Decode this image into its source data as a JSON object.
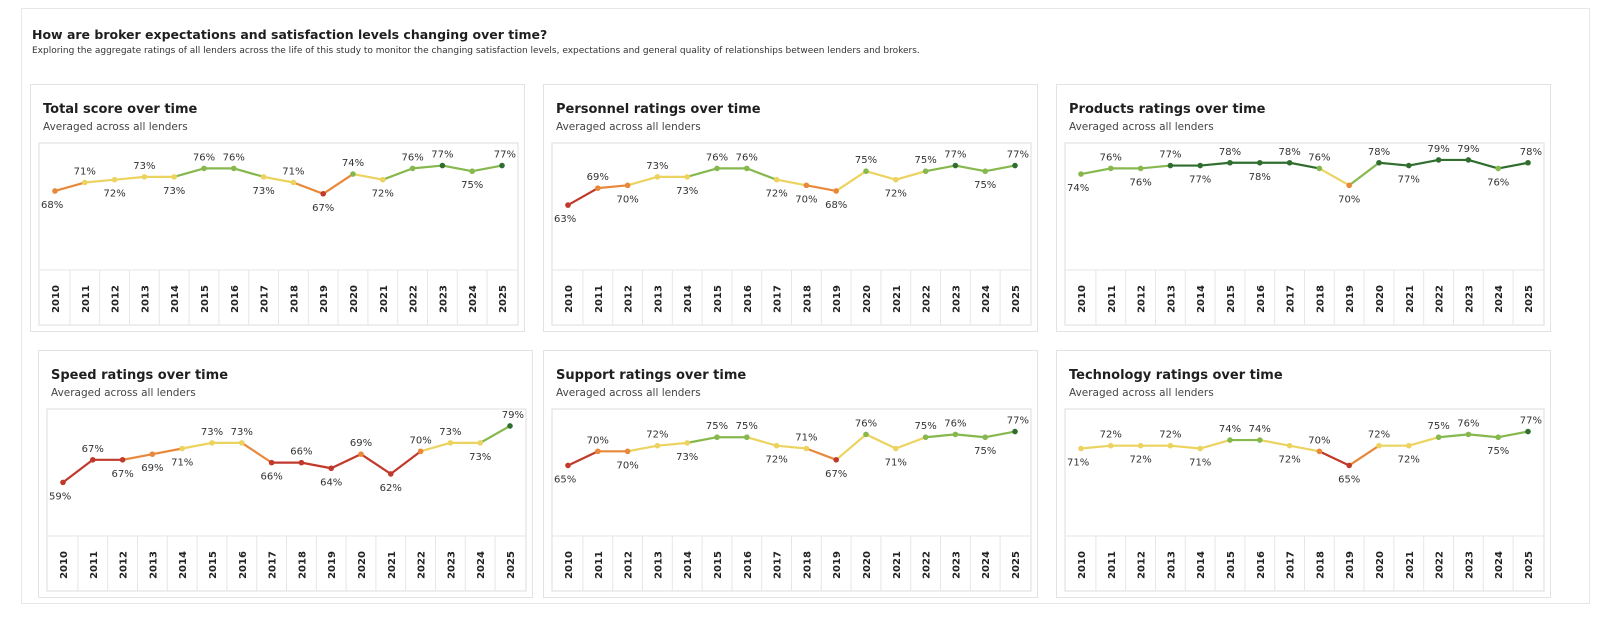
{
  "header": {
    "title": "How are broker expectations and satisfaction levels changing over time?",
    "subtitle": "Exploring the aggregate ratings of all lenders across the life of this study to monitor the changing satisfaction levels, expectations and general quality of relationships between lenders and brokers."
  },
  "colors": {
    "low": "#c0392b",
    "mid_low": "#e8883a",
    "mid": "#ecd360",
    "mid_high": "#86b84e",
    "high": "#2f6e2f"
  },
  "chart_data": [
    {
      "type": "line",
      "title": "Total score over time",
      "subtitle": "Averaged across all lenders",
      "categories": [
        "2010",
        "2011",
        "2012",
        "2013",
        "2014",
        "2015",
        "2016",
        "2017",
        "2018",
        "2019",
        "2020",
        "2021",
        "2022",
        "2023",
        "2024",
        "2025"
      ],
      "values": [
        68,
        71,
        72,
        73,
        73,
        76,
        76,
        73,
        71,
        67,
        74,
        72,
        76,
        77,
        75,
        77
      ],
      "labels": [
        "68%",
        "71%",
        "72%",
        "73%",
        "73%",
        "76%",
        "76%",
        "73%",
        "71%",
        "67%",
        "74%",
        "72%",
        "76%",
        "77%",
        "75%",
        "77%"
      ],
      "label_pos": [
        "below",
        "above",
        "below",
        "above",
        "below",
        "above",
        "above",
        "below",
        "above",
        "below",
        "above",
        "below",
        "above",
        "above",
        "below",
        "above"
      ],
      "ylim": [
        40,
        85
      ]
    },
    {
      "type": "line",
      "title": "Personnel ratings over time",
      "subtitle": "Averaged across all lenders",
      "categories": [
        "2010",
        "2011",
        "2012",
        "2013",
        "2014",
        "2015",
        "2016",
        "2017",
        "2018",
        "2019",
        "2020",
        "2021",
        "2022",
        "2023",
        "2024",
        "2025"
      ],
      "values": [
        63,
        69,
        70,
        73,
        73,
        76,
        76,
        72,
        70,
        68,
        75,
        72,
        75,
        77,
        75,
        77
      ],
      "labels": [
        "63%",
        "69%",
        "70%",
        "73%",
        "73%",
        "76%",
        "76%",
        "72%",
        "70%",
        "68%",
        "75%",
        "72%",
        "75%",
        "77%",
        "75%",
        "77%"
      ],
      "label_pos": [
        "below",
        "above",
        "below",
        "above",
        "below",
        "above",
        "above",
        "below",
        "below",
        "below",
        "above",
        "below",
        "above",
        "above",
        "below",
        "above"
      ],
      "ylim": [
        40,
        85
      ]
    },
    {
      "type": "line",
      "title": "Products ratings over time",
      "subtitle": "Averaged across all lenders",
      "categories": [
        "2010",
        "2011",
        "2012",
        "2013",
        "2014",
        "2015",
        "2016",
        "2017",
        "2018",
        "2019",
        "2020",
        "2021",
        "2022",
        "2023",
        "2024",
        "2025"
      ],
      "values": [
        74,
        76,
        76,
        77,
        77,
        78,
        78,
        78,
        76,
        70,
        78,
        77,
        79,
        79,
        76,
        78
      ],
      "labels": [
        "74%",
        "76%",
        "76%",
        "77%",
        "77%",
        "78%",
        "78%",
        "78%",
        "76%",
        "70%",
        "78%",
        "77%",
        "79%",
        "79%",
        "76%",
        "78%"
      ],
      "label_pos": [
        "below",
        "above",
        "below",
        "above",
        "below",
        "above",
        "below",
        "above",
        "above",
        "below",
        "above",
        "below",
        "above",
        "above",
        "below",
        "above"
      ],
      "ylim": [
        40,
        85
      ]
    },
    {
      "type": "line",
      "title": "Speed ratings over time",
      "subtitle": "Averaged across all lenders",
      "categories": [
        "2010",
        "2011",
        "2012",
        "2013",
        "2014",
        "2015",
        "2016",
        "2017",
        "2018",
        "2019",
        "2020",
        "2021",
        "2022",
        "2023",
        "2024",
        "2025"
      ],
      "values": [
        59,
        67,
        67,
        69,
        71,
        73,
        73,
        66,
        66,
        64,
        69,
        62,
        70,
        73,
        73,
        79
      ],
      "labels": [
        "59%",
        "67%",
        "67%",
        "69%",
        "71%",
        "73%",
        "73%",
        "66%",
        "66%",
        "64%",
        "69%",
        "62%",
        "70%",
        "73%",
        "73%",
        "79%"
      ],
      "label_pos": [
        "below",
        "above",
        "below",
        "below",
        "below",
        "above",
        "above",
        "below",
        "above",
        "below",
        "above",
        "below",
        "above",
        "above",
        "below",
        "above"
      ],
      "ylim": [
        40,
        85
      ]
    },
    {
      "type": "line",
      "title": "Support ratings over time",
      "subtitle": "Averaged across all lenders",
      "categories": [
        "2010",
        "2011",
        "2012",
        "2013",
        "2014",
        "2015",
        "2016",
        "2017",
        "2018",
        "2019",
        "2020",
        "2021",
        "2022",
        "2023",
        "2024",
        "2025"
      ],
      "values": [
        65,
        70,
        70,
        72,
        73,
        75,
        75,
        72,
        71,
        67,
        76,
        71,
        75,
        76,
        75,
        77
      ],
      "labels": [
        "65%",
        "70%",
        "70%",
        "72%",
        "73%",
        "75%",
        "75%",
        "72%",
        "71%",
        "67%",
        "76%",
        "71%",
        "75%",
        "76%",
        "75%",
        "77%"
      ],
      "label_pos": [
        "below",
        "above",
        "below",
        "above",
        "below",
        "above",
        "above",
        "below",
        "above",
        "below",
        "above",
        "below",
        "above",
        "above",
        "below",
        "above"
      ],
      "ylim": [
        40,
        85
      ]
    },
    {
      "type": "line",
      "title": "Technology ratings over time",
      "subtitle": "Averaged across all lenders",
      "categories": [
        "2010",
        "2011",
        "2012",
        "2013",
        "2014",
        "2015",
        "2016",
        "2017",
        "2018",
        "2019",
        "2020",
        "2021",
        "2022",
        "2023",
        "2024",
        "2025"
      ],
      "values": [
        71,
        72,
        72,
        72,
        71,
        74,
        74,
        72,
        70,
        65,
        72,
        72,
        75,
        76,
        75,
        77
      ],
      "labels": [
        "71%",
        "72%",
        "72%",
        "72%",
        "71%",
        "74%",
        "74%",
        "72%",
        "70%",
        "65%",
        "72%",
        "72%",
        "75%",
        "76%",
        "75%",
        "77%"
      ],
      "label_pos": [
        "below",
        "above",
        "below",
        "above",
        "below",
        "above",
        "above",
        "below",
        "above",
        "below",
        "above",
        "below",
        "above",
        "above",
        "below",
        "above"
      ],
      "ylim": [
        40,
        85
      ]
    }
  ]
}
